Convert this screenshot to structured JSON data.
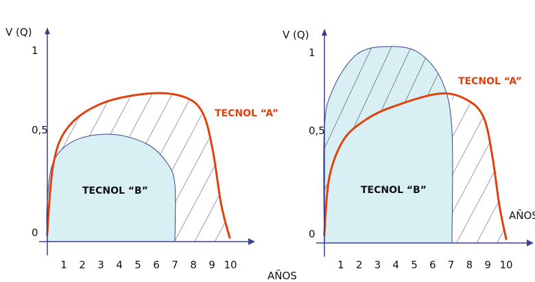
{
  "colors": {
    "tecnol_a": "#e0400c",
    "tecnol_b_fill": "#d8eff3",
    "axis": "#3a3f8f",
    "hatch": "#2f3a8a",
    "hatch_dark": "#222222"
  },
  "chart_data": [
    {
      "type": "area",
      "ylabel": "V (Q)",
      "xlabel": "AÑOS",
      "xticks": [
        "1",
        "2",
        "3",
        "4",
        "5",
        "6",
        "7",
        "8",
        "9",
        "10"
      ],
      "yticks": [
        "0",
        "0,5",
        "1"
      ],
      "xlim": [
        0,
        10.5
      ],
      "ylim": [
        0,
        1
      ],
      "series": [
        {
          "name": "TECNOL “A”",
          "x": [
            0.1,
            0.44,
            1.26,
            3.1,
            5.7,
            7.55,
            8.5,
            9.04,
            9.5,
            9.96
          ],
          "y": [
            0.035,
            0.4,
            0.59,
            0.71,
            0.76,
            0.74,
            0.66,
            0.47,
            0.19,
            0.02
          ]
        },
        {
          "name": "TECNOL “B”",
          "x": [
            0.1,
            0.1,
            0.44,
            1.63,
            3.6,
            5.5,
            6.6,
            7,
            7
          ],
          "y": [
            0,
            0.19,
            0.41,
            0.52,
            0.55,
            0.5,
            0.4,
            0.29,
            0
          ]
        }
      ]
    },
    {
      "type": "area",
      "ylabel": "V (Q)",
      "xlabel": "AÑOS",
      "xticks": [
        "1",
        "2",
        "3",
        "4",
        "5",
        "6",
        "7",
        "8",
        "9",
        "10"
      ],
      "yticks": [
        "0",
        "0,5",
        "1"
      ],
      "xlim": [
        0,
        10.5
      ],
      "ylim": [
        0,
        1
      ],
      "series": [
        {
          "name": "TECNOL “A”",
          "x": [
            0.1,
            0.37,
            1.12,
            2.24,
            3.73,
            6.34,
            7.84,
            8.77,
            9.25,
            9.63,
            10
          ],
          "y": [
            0.04,
            0.33,
            0.52,
            0.62,
            0.69,
            0.76,
            0.73,
            0.64,
            0.44,
            0.19,
            0.02
          ]
        },
        {
          "name": "TECNOL “B”",
          "x": [
            0.1,
            0.1,
            0.56,
            1.87,
            3.54,
            5.22,
            6.53,
            7.05,
            7.05
          ],
          "y": [
            0,
            0.57,
            0.78,
            0.96,
            1.0,
            0.97,
            0.82,
            0.57,
            0
          ]
        }
      ]
    }
  ]
}
